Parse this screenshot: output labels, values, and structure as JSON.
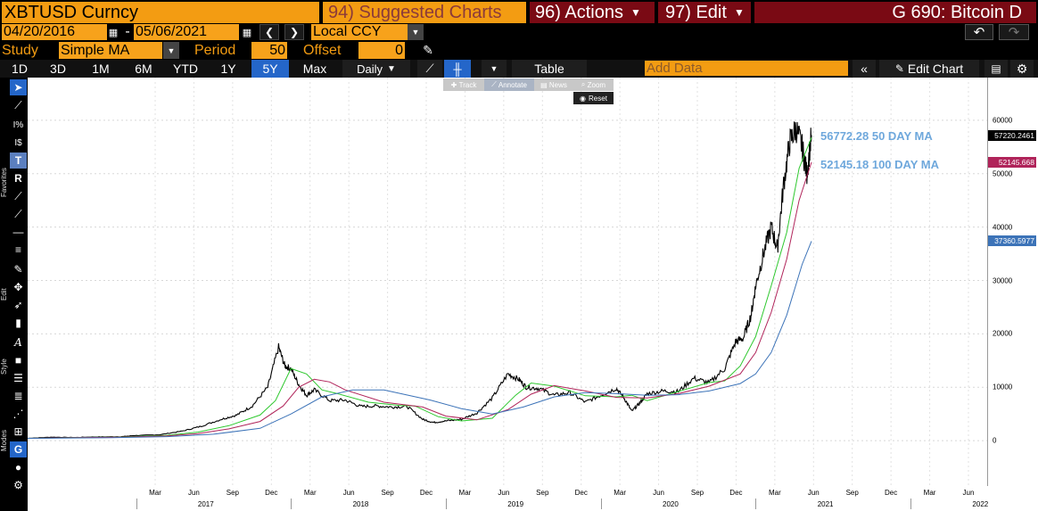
{
  "header": {
    "ticker": "XBTUSD Curncy",
    "suggested_charts": "94) Suggested Charts",
    "actions": "96) Actions",
    "edit": "97) Edit",
    "function_title": "G 690: Bitcoin D"
  },
  "date_bar": {
    "start_date": "04/20/2016",
    "dash": "-",
    "end_date": "05/06/2021",
    "currency": "Local CCY"
  },
  "study_bar": {
    "study_label": "Study",
    "study_value": "Simple MA",
    "period_label": "Period",
    "period_value": "50",
    "offset_label": "Offset",
    "offset_value": "0"
  },
  "period_tabs": [
    "1D",
    "3D",
    "1M",
    "6M",
    "YTD",
    "1Y",
    "5Y",
    "Max"
  ],
  "active_tab": "5Y",
  "frequency": "Daily",
  "table_label": "Table",
  "add_data_placeholder": "Add Data",
  "edit_chart_label": "Edit Chart",
  "tool_popup": {
    "track": "Track",
    "annotate": "Annotate",
    "news": "News",
    "zoom": "Zoom",
    "reset": "Reset"
  },
  "sidebar_labels": {
    "favorites": "Favorites",
    "edit": "Edit",
    "style": "Style",
    "modes": "Modes"
  },
  "annotations": [
    {
      "text": "56772.28 50 DAY MA"
    },
    {
      "text": "52145.18 100 DAY MA"
    }
  ],
  "colors": {
    "price": "#000000",
    "ma50": "#2ec82e",
    "ma100": "#b0245a",
    "ma200": "#3c73b8",
    "annotation": "#6fa8dc",
    "accent_orange": "#f39c12",
    "header_red": "#7a0a14",
    "active_blue": "#2466c9"
  },
  "chart_data": {
    "type": "line",
    "x_tick_labels": [
      "Mar",
      "Jun",
      "Sep",
      "Dec",
      "Mar",
      "Jun",
      "Sep",
      "Dec",
      "Mar",
      "Jun",
      "Sep",
      "Dec",
      "Mar",
      "Jun",
      "Sep",
      "Dec",
      "Mar",
      "Jun",
      "Sep",
      "Dec",
      "Mar",
      "Jun"
    ],
    "year_labels": [
      "2017",
      "2018",
      "2019",
      "2020",
      "2021",
      "2022"
    ],
    "y_ticks": [
      0,
      10000,
      20000,
      30000,
      40000,
      50000,
      60000
    ],
    "y_tick_labels": [
      "0",
      "10000",
      "20000",
      "30000",
      "40000",
      "50000",
      "60000"
    ],
    "ylim": [
      -8500,
      68000
    ],
    "x_domain": [
      2016.3,
      2022.5
    ],
    "grid": true,
    "last_value_tags": [
      {
        "value": 57220.2461,
        "label": "57220.2461",
        "color": "#000000"
      },
      {
        "value": 52145.668,
        "label": "52145.668",
        "color": "#b0245a"
      },
      {
        "value": 37360.5977,
        "label": "37360.5977",
        "color": "#3c73b8"
      }
    ],
    "series": [
      {
        "key": "price",
        "x": [
          2016.3,
          2016.45,
          2016.6,
          2016.75,
          2016.9,
          2017.0,
          2017.15,
          2017.3,
          2017.42,
          2017.55,
          2017.65,
          2017.75,
          2017.85,
          2017.92,
          2017.96,
          2018.0,
          2018.05,
          2018.1,
          2018.15,
          2018.25,
          2018.35,
          2018.45,
          2018.55,
          2018.65,
          2018.75,
          2018.85,
          2018.92,
          2019.0,
          2019.1,
          2019.2,
          2019.3,
          2019.4,
          2019.47,
          2019.52,
          2019.6,
          2019.7,
          2019.8,
          2019.9,
          2020.0,
          2020.1,
          2020.15,
          2020.2,
          2020.25,
          2020.3,
          2020.4,
          2020.5,
          2020.6,
          2020.7,
          2020.8,
          2020.87,
          2020.92,
          2020.97,
          2021.0,
          2021.05,
          2021.1,
          2021.14,
          2021.18,
          2021.22,
          2021.26,
          2021.3,
          2021.33,
          2021.36
        ],
        "y": [
          440,
          650,
          600,
          700,
          740,
          970,
          1100,
          1800,
          2700,
          4000,
          4800,
          6500,
          10000,
          17500,
          14000,
          13500,
          10500,
          8500,
          9500,
          7500,
          7600,
          6400,
          6500,
          6300,
          6400,
          4000,
          3400,
          3700,
          4000,
          5200,
          8000,
          12500,
          11500,
          10000,
          9800,
          8500,
          9000,
          7200,
          8500,
          9800,
          8000,
          5500,
          7000,
          8800,
          9300,
          9200,
          11700,
          10800,
          13500,
          18500,
          19200,
          23500,
          29000,
          35000,
          40000,
          36000,
          48000,
          56000,
          58500,
          55000,
          50000,
          57220
        ]
      },
      {
        "key": "ma50",
        "x": [
          2016.3,
          2016.6,
          2016.9,
          2017.2,
          2017.4,
          2017.6,
          2017.8,
          2017.9,
          2018.0,
          2018.1,
          2018.2,
          2018.3,
          2018.5,
          2018.7,
          2018.8,
          2018.95,
          2019.1,
          2019.3,
          2019.45,
          2019.55,
          2019.7,
          2019.9,
          2020.1,
          2020.2,
          2020.3,
          2020.5,
          2020.7,
          2020.8,
          2020.9,
          2021.0,
          2021.1,
          2021.2,
          2021.28,
          2021.36
        ],
        "y": [
          440,
          580,
          680,
          1000,
          1600,
          2800,
          4800,
          7500,
          13500,
          12500,
          9500,
          8800,
          7200,
          6600,
          6500,
          4500,
          3700,
          4200,
          8500,
          10800,
          10200,
          8400,
          8200,
          8500,
          7500,
          9200,
          10900,
          11200,
          14000,
          19500,
          29000,
          39000,
          51000,
          56772
        ]
      },
      {
        "key": "ma100",
        "x": [
          2016.3,
          2016.6,
          2016.9,
          2017.2,
          2017.4,
          2017.6,
          2017.8,
          2017.95,
          2018.05,
          2018.15,
          2018.25,
          2018.35,
          2018.6,
          2018.85,
          2019.0,
          2019.2,
          2019.4,
          2019.55,
          2019.7,
          2019.9,
          2020.1,
          2020.3,
          2020.5,
          2020.7,
          2020.9,
          2021.0,
          2021.1,
          2021.2,
          2021.28,
          2021.36
        ],
        "y": [
          440,
          560,
          650,
          900,
          1300,
          2200,
          3600,
          6500,
          10000,
          11500,
          11000,
          9500,
          7200,
          6300,
          4600,
          3900,
          5800,
          8700,
          10300,
          9300,
          8100,
          8000,
          8800,
          10200,
          12500,
          16500,
          24000,
          34000,
          45000,
          52145
        ]
      },
      {
        "key": "ma200",
        "x": [
          2016.3,
          2016.8,
          2017.2,
          2017.5,
          2017.8,
          2018.0,
          2018.2,
          2018.4,
          2018.6,
          2018.9,
          2019.1,
          2019.3,
          2019.5,
          2019.7,
          2019.9,
          2020.1,
          2020.3,
          2020.5,
          2020.7,
          2020.9,
          2021.0,
          2021.1,
          2021.2,
          2021.3,
          2021.36
        ],
        "y": [
          440,
          540,
          750,
          1200,
          2300,
          5000,
          8200,
          9500,
          9500,
          7600,
          6000,
          5000,
          6300,
          8200,
          9000,
          8800,
          8500,
          8600,
          9300,
          10700,
          12500,
          16500,
          23500,
          33000,
          37360
        ]
      }
    ]
  }
}
